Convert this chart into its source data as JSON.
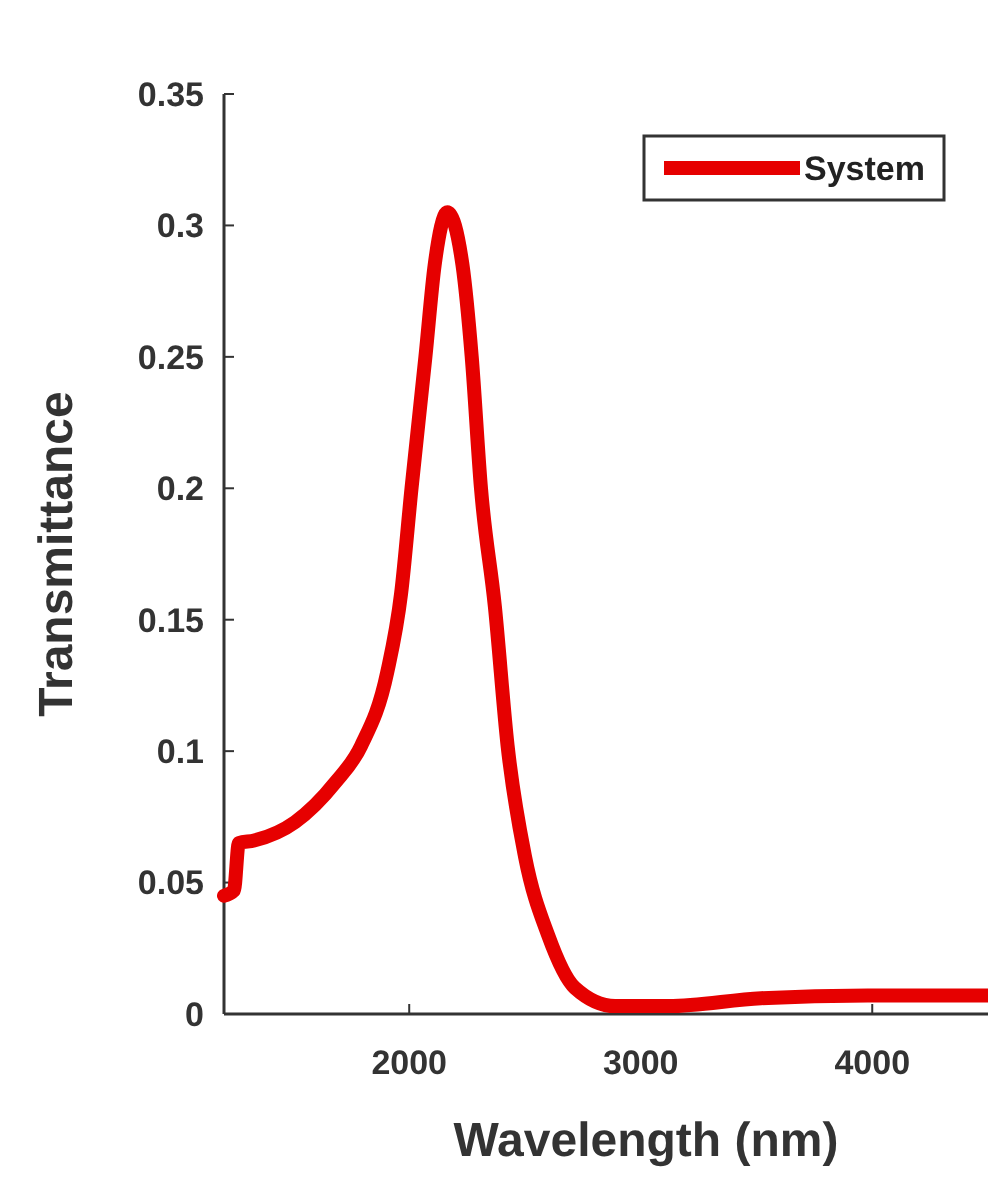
{
  "chart_data": {
    "type": "line",
    "xlabel": "Wavelength (nm)",
    "ylabel": "Transmittance",
    "xlim": [
      1200,
      4500
    ],
    "ylim": [
      0,
      0.35
    ],
    "xticks": [
      2000,
      3000,
      4000
    ],
    "yticks": [
      0,
      0.05,
      0.1,
      0.15,
      0.2,
      0.25,
      0.3,
      0.35
    ],
    "legend": "top right",
    "grid": false,
    "line_style": "solid",
    "marker": "none",
    "series": [
      {
        "name": "System",
        "color": "#e60000",
        "x": [
          1200,
          1243,
          1264,
          1330,
          1507,
          1680,
          1792,
          1905,
          1965,
          2010,
          2070,
          2110,
          2165,
          2230,
          2270,
          2310,
          2370,
          2425,
          2500,
          2600,
          2715,
          2890,
          3120,
          3520,
          3980,
          4500
        ],
        "values": [
          0.045,
          0.047,
          0.065,
          0.066,
          0.073,
          0.088,
          0.102,
          0.13,
          0.16,
          0.2,
          0.25,
          0.285,
          0.305,
          0.285,
          0.25,
          0.2,
          0.155,
          0.102,
          0.06,
          0.03,
          0.01,
          0.003,
          0.003,
          0.006,
          0.007,
          0.007
        ]
      }
    ]
  }
}
